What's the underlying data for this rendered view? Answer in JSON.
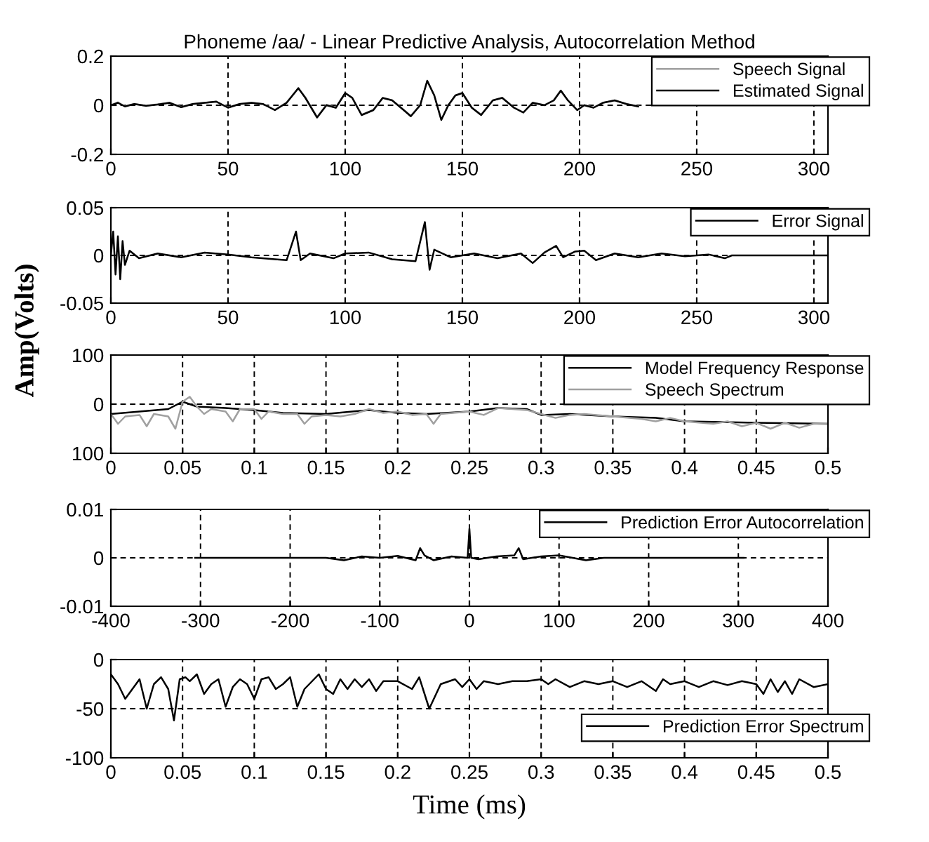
{
  "chart_data": [
    {
      "type": "line",
      "title": "Phoneme /aa/ - Linear Predictive Analysis, Autocorrelation Method",
      "xlim": [
        0,
        306
      ],
      "ylim": [
        -0.2,
        0.2
      ],
      "xticks": [
        0,
        50,
        100,
        150,
        200,
        250,
        300
      ],
      "yticks": [
        -0.2,
        0,
        0.2
      ],
      "grid": true,
      "legend": "top right",
      "series": [
        {
          "name": "Speech Signal",
          "color": "#a0a0a0",
          "x": [
            0,
            3,
            6,
            10,
            15,
            20,
            25,
            30,
            35,
            40,
            45,
            50,
            55,
            60,
            65,
            70,
            75,
            80,
            83,
            88,
            92,
            96,
            100,
            103,
            107,
            112,
            116,
            120,
            125,
            128,
            132,
            135,
            138,
            141,
            144,
            147,
            150,
            154,
            158,
            163,
            167,
            172,
            176,
            180,
            185,
            189,
            192,
            195,
            199,
            202,
            206,
            210,
            215,
            220,
            225
          ],
          "values": [
            0,
            0.012,
            -0.004,
            0.006,
            -0.003,
            0.004,
            0.01,
            -0.007,
            0.006,
            0.01,
            0.014,
            -0.009,
            0.006,
            0.01,
            0.004,
            -0.018,
            0.011,
            0.068,
            0.032,
            -0.048,
            0.002,
            -0.01,
            0.048,
            0.031,
            -0.038,
            -0.019,
            0.029,
            0.021,
            -0.019,
            -0.043,
            0.002,
            0.098,
            0.041,
            -0.058,
            0.001,
            0.039,
            0.049,
            -0.009,
            -0.038,
            0.019,
            0.031,
            -0.009,
            -0.029,
            0.011,
            0.001,
            0.019,
            0.058,
            0.021,
            -0.019,
            0.001,
            -0.009,
            0.011,
            0.019,
            0.006,
            -0.004
          ]
        },
        {
          "name": "Estimated Signal",
          "color": "#000000",
          "x": [
            0,
            3,
            6,
            10,
            15,
            20,
            25,
            30,
            35,
            40,
            45,
            50,
            55,
            60,
            65,
            70,
            75,
            80,
            83,
            88,
            92,
            96,
            100,
            103,
            107,
            112,
            116,
            120,
            125,
            128,
            132,
            135,
            138,
            141,
            144,
            147,
            150,
            154,
            158,
            163,
            167,
            172,
            176,
            180,
            185,
            189,
            192,
            195,
            199,
            202,
            206,
            210,
            215,
            220,
            225
          ],
          "values": [
            0,
            0.01,
            -0.005,
            0.005,
            -0.002,
            0.003,
            0.01,
            -0.008,
            0.005,
            0.01,
            0.015,
            -0.01,
            0.005,
            0.01,
            0.005,
            -0.02,
            0.01,
            0.07,
            0.03,
            -0.05,
            0,
            -0.01,
            0.05,
            0.03,
            -0.04,
            -0.02,
            0.03,
            0.02,
            -0.02,
            -0.045,
            0,
            0.1,
            0.04,
            -0.06,
            0,
            0.04,
            0.05,
            -0.01,
            -0.04,
            0.02,
            0.03,
            -0.01,
            -0.03,
            0.01,
            0,
            0.02,
            0.06,
            0.02,
            -0.02,
            0,
            -0.01,
            0.01,
            0.02,
            0.005,
            -0.005
          ]
        }
      ]
    },
    {
      "type": "line",
      "xlim": [
        0,
        306
      ],
      "ylim": [
        -0.05,
        0.05
      ],
      "xticks": [
        0,
        50,
        100,
        150,
        200,
        250,
        300
      ],
      "yticks": [
        -0.05,
        0,
        0.05
      ],
      "grid": true,
      "legend": "top right",
      "series": [
        {
          "name": "Error Signal",
          "color": "#000000",
          "x": [
            0,
            1,
            2,
            3,
            4,
            5,
            6,
            8,
            12,
            20,
            30,
            40,
            50,
            60,
            70,
            75,
            79,
            81,
            85,
            95,
            100,
            110,
            120,
            130,
            134,
            136,
            138,
            145,
            155,
            165,
            175,
            180,
            185,
            190,
            193,
            198,
            202,
            207,
            215,
            225,
            235,
            245,
            255,
            262,
            265,
            306
          ],
          "values": [
            0,
            0.025,
            -0.02,
            0.02,
            -0.025,
            0.015,
            -0.01,
            0.005,
            -0.003,
            0.002,
            -0.002,
            0.003,
            0.001,
            -0.002,
            -0.004,
            -0.005,
            0.025,
            -0.005,
            0.002,
            -0.003,
            0.002,
            0.003,
            -0.004,
            -0.006,
            0.035,
            -0.015,
            0.006,
            -0.002,
            0.002,
            -0.003,
            0.002,
            -0.008,
            0.003,
            0.01,
            -0.002,
            0.004,
            0.005,
            -0.005,
            0.002,
            -0.002,
            0.002,
            -0.001,
            0.001,
            -0.003,
            0,
            0
          ]
        }
      ]
    },
    {
      "type": "line",
      "ylabel": "Amp(Volts)",
      "xlim": [
        0,
        0.5
      ],
      "ylim": [
        -100,
        100
      ],
      "xticks": [
        0,
        0.05,
        0.1,
        0.15,
        0.2,
        0.25,
        0.3,
        0.35,
        0.4,
        0.45,
        0.5
      ],
      "yticks": [
        {
          "value": -100,
          "label": "100"
        },
        0,
        100
      ],
      "grid": true,
      "legend": "top right",
      "series": [
        {
          "name": "Model Frequency Response",
          "color": "#000000",
          "x": [
            0,
            0.02,
            0.04,
            0.05,
            0.06,
            0.08,
            0.1,
            0.12,
            0.15,
            0.18,
            0.2,
            0.22,
            0.25,
            0.27,
            0.29,
            0.3,
            0.32,
            0.35,
            0.38,
            0.4,
            0.45,
            0.5
          ],
          "values": [
            -20,
            -15,
            -10,
            5,
            -5,
            -8,
            -12,
            -18,
            -20,
            -12,
            -18,
            -20,
            -15,
            -8,
            -10,
            -22,
            -20,
            -25,
            -28,
            -35,
            -38,
            -40
          ]
        },
        {
          "name": "Speech Spectrum",
          "color": "#a0a0a0",
          "x": [
            0,
            0.005,
            0.01,
            0.02,
            0.025,
            0.03,
            0.04,
            0.045,
            0.05,
            0.055,
            0.06,
            0.065,
            0.07,
            0.08,
            0.085,
            0.09,
            0.1,
            0.105,
            0.11,
            0.12,
            0.13,
            0.135,
            0.14,
            0.15,
            0.16,
            0.17,
            0.18,
            0.19,
            0.2,
            0.21,
            0.22,
            0.225,
            0.23,
            0.25,
            0.26,
            0.27,
            0.28,
            0.29,
            0.3,
            0.31,
            0.32,
            0.33,
            0.35,
            0.37,
            0.38,
            0.39,
            0.4,
            0.42,
            0.43,
            0.44,
            0.45,
            0.46,
            0.47,
            0.48,
            0.49,
            0.5
          ],
          "values": [
            -20,
            -40,
            -25,
            -22,
            -45,
            -20,
            -25,
            -50,
            5,
            15,
            -5,
            -20,
            -10,
            -15,
            -35,
            -10,
            -10,
            -30,
            -15,
            -20,
            -20,
            -40,
            -25,
            -22,
            -25,
            -20,
            -10,
            -18,
            -15,
            -22,
            -20,
            -40,
            -20,
            -15,
            -22,
            -8,
            -10,
            -12,
            -20,
            -28,
            -22,
            -20,
            -25,
            -30,
            -35,
            -28,
            -35,
            -40,
            -35,
            -45,
            -38,
            -50,
            -38,
            -48,
            -40,
            -40
          ]
        }
      ]
    },
    {
      "type": "line",
      "xlim": [
        -400,
        400
      ],
      "ylim": [
        -0.01,
        0.01
      ],
      "xticks": [
        -400,
        -300,
        -200,
        -100,
        0,
        100,
        200,
        300,
        400
      ],
      "yticks": [
        -0.01,
        0,
        0.01
      ],
      "grid": true,
      "legend": "top right",
      "series": [
        {
          "name": "Prediction Error Autocorrelation",
          "color": "#000000",
          "x": [
            -306,
            -160,
            -140,
            -120,
            -100,
            -80,
            -60,
            -55,
            -50,
            -40,
            -20,
            -2,
            0,
            2,
            10,
            30,
            50,
            55,
            60,
            80,
            100,
            130,
            150,
            306
          ],
          "values": [
            0,
            0,
            -0.0005,
            0.0003,
            0,
            0.0004,
            -0.0005,
            0.002,
            0.0005,
            -0.0005,
            0.0003,
            0,
            0.006,
            0,
            -0.0003,
            0.0003,
            0.0005,
            0.002,
            -0.0003,
            0.0003,
            0.0005,
            -0.0005,
            0,
            0
          ]
        }
      ]
    },
    {
      "type": "line",
      "xlabel": "Time (ms)",
      "xlim": [
        0,
        0.5
      ],
      "ylim": [
        -100,
        0
      ],
      "xticks": [
        0,
        0.05,
        0.1,
        0.15,
        0.2,
        0.25,
        0.3,
        0.35,
        0.4,
        0.45,
        0.5
      ],
      "yticks": [
        -100,
        -50,
        0
      ],
      "grid": true,
      "legend": "bottom right",
      "series": [
        {
          "name": "Prediction Error Spectrum",
          "color": "#000000",
          "x": [
            0,
            0.005,
            0.01,
            0.015,
            0.02,
            0.025,
            0.03,
            0.035,
            0.04,
            0.044,
            0.048,
            0.052,
            0.055,
            0.06,
            0.065,
            0.07,
            0.075,
            0.08,
            0.085,
            0.09,
            0.095,
            0.1,
            0.105,
            0.11,
            0.115,
            0.12,
            0.125,
            0.13,
            0.135,
            0.145,
            0.15,
            0.155,
            0.16,
            0.165,
            0.17,
            0.175,
            0.18,
            0.185,
            0.19,
            0.2,
            0.21,
            0.215,
            0.222,
            0.23,
            0.24,
            0.245,
            0.25,
            0.255,
            0.26,
            0.27,
            0.28,
            0.29,
            0.3,
            0.305,
            0.31,
            0.32,
            0.33,
            0.34,
            0.35,
            0.36,
            0.37,
            0.38,
            0.385,
            0.39,
            0.4,
            0.41,
            0.42,
            0.43,
            0.44,
            0.45,
            0.455,
            0.46,
            0.465,
            0.47,
            0.475,
            0.48,
            0.49,
            0.5
          ],
          "values": [
            -15,
            -25,
            -40,
            -30,
            -20,
            -50,
            -25,
            -18,
            -30,
            -62,
            -20,
            -18,
            -22,
            -15,
            -35,
            -25,
            -20,
            -48,
            -28,
            -20,
            -25,
            -40,
            -20,
            -18,
            -30,
            -25,
            -18,
            -48,
            -30,
            -15,
            -30,
            -35,
            -20,
            -30,
            -20,
            -28,
            -20,
            -32,
            -22,
            -22,
            -30,
            -18,
            -50,
            -25,
            -20,
            -28,
            -20,
            -30,
            -22,
            -25,
            -22,
            -22,
            -20,
            -25,
            -20,
            -28,
            -22,
            -25,
            -22,
            -28,
            -22,
            -32,
            -20,
            -25,
            -22,
            -28,
            -22,
            -26,
            -22,
            -25,
            -35,
            -20,
            -33,
            -22,
            -35,
            -20,
            -28,
            -25
          ]
        }
      ]
    }
  ]
}
